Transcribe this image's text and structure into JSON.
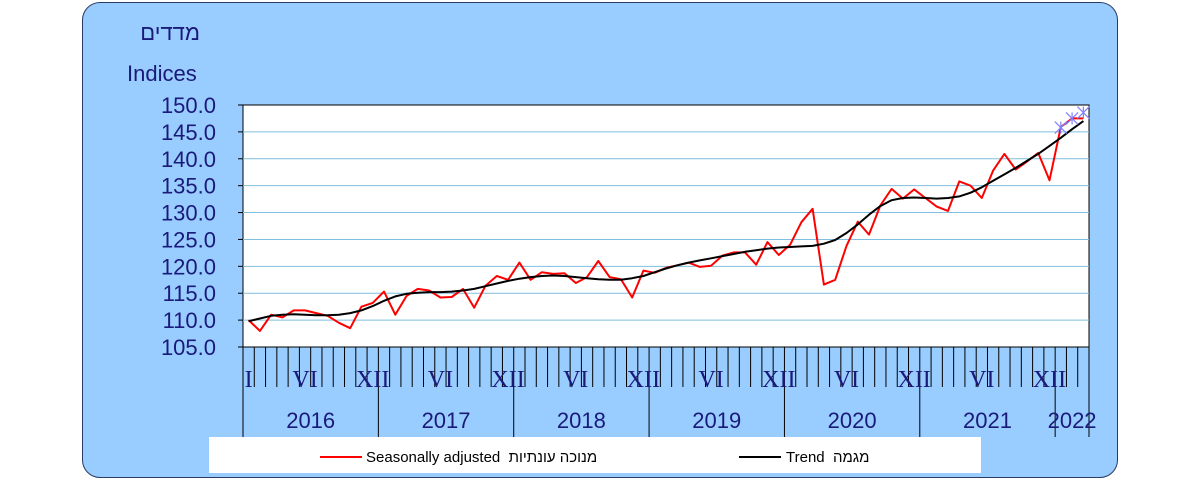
{
  "chart_data": {
    "type": "line",
    "ylabel_he": "מדדים",
    "ylabel_en": "Indices",
    "ylim": [
      105.0,
      150.0
    ],
    "yticks": [
      "150.0",
      "145.0",
      "140.0",
      "135.0",
      "130.0",
      "125.0",
      "120.0",
      "115.0",
      "110.0",
      "105.0"
    ],
    "x_period": {
      "start": "2016-01",
      "end": "2022-03",
      "months": 75
    },
    "month_ticks": [
      "I",
      "VI",
      "XII",
      "VI",
      "XII",
      "VI",
      "XII",
      "VI",
      "XII",
      "VI",
      "XII",
      "VI",
      "XII"
    ],
    "years": [
      "2016",
      "2017",
      "2018",
      "2019",
      "2020",
      "2021",
      "2022"
    ],
    "grid": true,
    "legend_position": "bottom",
    "series": [
      {
        "name": "Seasonally adjusted  מנוכה עונתיות",
        "color": "#ff0000",
        "values": [
          110.0,
          108.0,
          111.0,
          110.5,
          111.8,
          111.8,
          111.3,
          110.8,
          109.5,
          108.5,
          112.5,
          113.2,
          115.3,
          111.0,
          114.5,
          115.8,
          115.5,
          114.2,
          114.3,
          115.8,
          112.3,
          116.4,
          118.2,
          117.5,
          120.7,
          117.5,
          118.9,
          118.6,
          118.7,
          116.9,
          118.0,
          121.0,
          118.0,
          117.6,
          114.2,
          119.2,
          118.8,
          119.7,
          120.2,
          120.7,
          119.9,
          120.1,
          122.0,
          122.6,
          122.6,
          120.3,
          124.5,
          122.1,
          124.0,
          128.2,
          130.7,
          116.6,
          117.5,
          123.8,
          128.3,
          125.9,
          131.3,
          134.4,
          132.6,
          134.3,
          132.7,
          131.1,
          130.3,
          135.8,
          135.0,
          132.7,
          137.8,
          140.9,
          138.0,
          139.5,
          141.1,
          136.0,
          145.9,
          147.5,
          147.5
        ]
      },
      {
        "name": "Trend  מגמה",
        "color": "#000000",
        "values": [
          109.8,
          110.3,
          110.8,
          111.0,
          111.1,
          111.0,
          110.9,
          110.9,
          111.0,
          111.3,
          111.8,
          112.6,
          113.6,
          114.4,
          114.9,
          115.1,
          115.2,
          115.2,
          115.3,
          115.5,
          115.8,
          116.3,
          116.8,
          117.3,
          117.7,
          118.0,
          118.2,
          118.3,
          118.2,
          118.0,
          117.8,
          117.6,
          117.5,
          117.5,
          117.8,
          118.2,
          118.9,
          119.6,
          120.2,
          120.7,
          121.1,
          121.5,
          121.9,
          122.3,
          122.7,
          123.0,
          123.3,
          123.5,
          123.6,
          123.7,
          123.8,
          124.2,
          124.9,
          126.2,
          127.8,
          129.6,
          131.2,
          132.3,
          132.7,
          132.8,
          132.7,
          132.6,
          132.7,
          133.0,
          133.7,
          134.7,
          135.9,
          137.1,
          138.3,
          139.6,
          140.9,
          142.4,
          143.9,
          145.5,
          147.0
        ]
      }
    ],
    "forecast_markers": {
      "color": "#8080ff",
      "values": [
        145.8,
        147.5,
        148.6
      ]
    }
  }
}
